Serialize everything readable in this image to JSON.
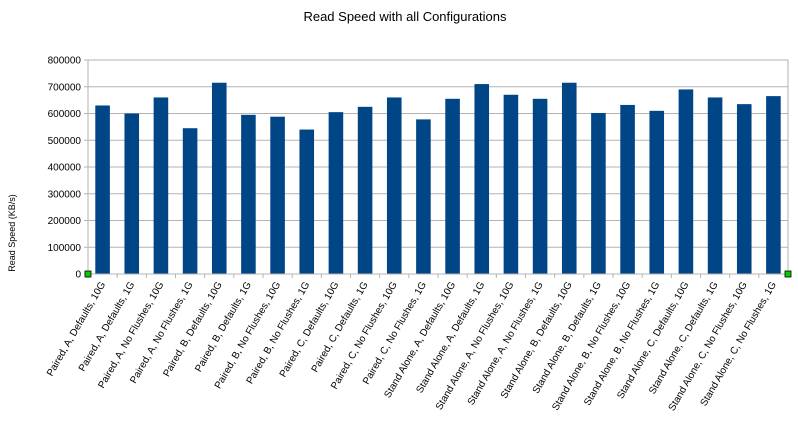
{
  "chart_data": {
    "type": "bar",
    "title": "Read Speed with all Configurations",
    "xlabel": "",
    "ylabel": "Read Speed (KB/s)",
    "ylim": [
      0,
      800000
    ],
    "yticks": [
      "0",
      "100000",
      "200000",
      "300000",
      "400000",
      "500000",
      "600000",
      "700000",
      "800000"
    ],
    "grid": true,
    "legend": "none",
    "bar_color": "#004586",
    "categories": [
      "Paired, A, Defaults, 10G",
      "Paired, A, Defaults, 1G",
      "Paired, A, No Flushes, 10G",
      "Paired, A, No Flushes, 1G",
      "Paired, B, Defaults, 10G",
      "Paired, B, Defaults, 1G",
      "Paired, B, No Flushes, 10G",
      "Paired, B, No Flushes, 1G",
      "Paired, C, Defaults, 10G",
      "Paired, C, Defaults, 1G",
      "Paired, C, No Flushes, 10G",
      "Paired, C, No Flushes, 1G",
      "Stand Alone, A, Defaults, 10G",
      "Stand Alone, A, Defaults, 1G",
      "Stand Alone, A, No Flushes, 10G",
      "Stand Alone, A, No Flushes, 1G",
      "Stand Alone, B, Defaults, 10G",
      "Stand Alone, B, Defaults, 1G",
      "Stand Alone, B, No Flushes, 10G",
      "Stand Alone, B, No Flushes, 1G",
      "Stand Alone, C, Defaults, 10G",
      "Stand Alone, C, Defaults, 1G",
      "Stand Alone, C, No Flushes, 10G",
      "Stand Alone, C, No Flushes, 1G"
    ],
    "values": [
      630000,
      600000,
      660000,
      545000,
      715000,
      595000,
      588000,
      540000,
      605000,
      625000,
      660000,
      578000,
      655000,
      710000,
      670000,
      655000,
      715000,
      602000,
      632000,
      610000,
      690000,
      660000,
      635000,
      665000
    ]
  }
}
